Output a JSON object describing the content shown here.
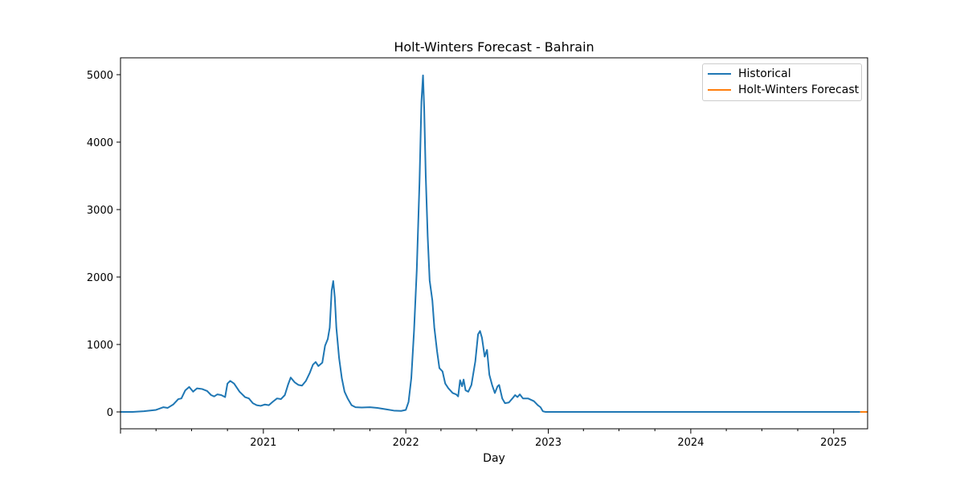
{
  "chart_data": {
    "type": "line",
    "title": "Holt-Winters Forecast - Bahrain",
    "xlabel": "Day",
    "ylabel": "",
    "xlim": [
      "2020-01-01",
      "2025-03-29"
    ],
    "ylim": [
      -250,
      5250
    ],
    "x_ticks": [
      {
        "date": "2021-01-01",
        "label": "2021"
      },
      {
        "date": "2022-01-01",
        "label": "2022"
      },
      {
        "date": "2023-01-01",
        "label": "2023"
      },
      {
        "date": "2024-01-01",
        "label": "2024"
      },
      {
        "date": "2025-01-01",
        "label": "2025"
      }
    ],
    "y_ticks": [
      0,
      1000,
      2000,
      3000,
      4000,
      5000
    ],
    "grid": false,
    "legend_position": "top-right",
    "series": [
      {
        "name": "Historical",
        "color": "#1f77b4",
        "points": [
          [
            "2020-01-01",
            0
          ],
          [
            "2020-02-01",
            0
          ],
          [
            "2020-03-01",
            10
          ],
          [
            "2020-04-01",
            30
          ],
          [
            "2020-04-20",
            70
          ],
          [
            "2020-05-01",
            60
          ],
          [
            "2020-05-15",
            110
          ],
          [
            "2020-05-28",
            190
          ],
          [
            "2020-06-05",
            200
          ],
          [
            "2020-06-15",
            320
          ],
          [
            "2020-06-25",
            370
          ],
          [
            "2020-07-05",
            300
          ],
          [
            "2020-07-15",
            350
          ],
          [
            "2020-07-28",
            340
          ],
          [
            "2020-08-10",
            310
          ],
          [
            "2020-08-20",
            250
          ],
          [
            "2020-08-28",
            230
          ],
          [
            "2020-09-05",
            260
          ],
          [
            "2020-09-15",
            250
          ],
          [
            "2020-09-25",
            220
          ],
          [
            "2020-10-01",
            420
          ],
          [
            "2020-10-08",
            460
          ],
          [
            "2020-10-18",
            420
          ],
          [
            "2020-11-01",
            300
          ],
          [
            "2020-11-15",
            220
          ],
          [
            "2020-11-25",
            200
          ],
          [
            "2020-12-05",
            130
          ],
          [
            "2020-12-15",
            100
          ],
          [
            "2020-12-25",
            90
          ],
          [
            "2021-01-05",
            110
          ],
          [
            "2021-01-15",
            100
          ],
          [
            "2021-01-25",
            150
          ],
          [
            "2021-02-05",
            200
          ],
          [
            "2021-02-15",
            190
          ],
          [
            "2021-02-25",
            250
          ],
          [
            "2021-03-05",
            400
          ],
          [
            "2021-03-12",
            510
          ],
          [
            "2021-03-22",
            440
          ],
          [
            "2021-04-01",
            400
          ],
          [
            "2021-04-10",
            390
          ],
          [
            "2021-04-20",
            460
          ],
          [
            "2021-04-30",
            580
          ],
          [
            "2021-05-08",
            700
          ],
          [
            "2021-05-15",
            740
          ],
          [
            "2021-05-22",
            680
          ],
          [
            "2021-06-01",
            730
          ],
          [
            "2021-06-08",
            980
          ],
          [
            "2021-06-15",
            1080
          ],
          [
            "2021-06-20",
            1250
          ],
          [
            "2021-06-25",
            1800
          ],
          [
            "2021-06-29",
            1940
          ],
          [
            "2021-07-03",
            1700
          ],
          [
            "2021-07-07",
            1250
          ],
          [
            "2021-07-14",
            800
          ],
          [
            "2021-07-21",
            500
          ],
          [
            "2021-07-28",
            300
          ],
          [
            "2021-08-05",
            200
          ],
          [
            "2021-08-15",
            100
          ],
          [
            "2021-08-25",
            70
          ],
          [
            "2021-09-10",
            65
          ],
          [
            "2021-10-01",
            70
          ],
          [
            "2021-10-20",
            60
          ],
          [
            "2021-11-10",
            40
          ],
          [
            "2021-12-01",
            20
          ],
          [
            "2021-12-20",
            15
          ],
          [
            "2022-01-01",
            30
          ],
          [
            "2022-01-08",
            150
          ],
          [
            "2022-01-15",
            500
          ],
          [
            "2022-01-22",
            1200
          ],
          [
            "2022-01-29",
            2100
          ],
          [
            "2022-02-05",
            3400
          ],
          [
            "2022-02-10",
            4600
          ],
          [
            "2022-02-14",
            4990
          ],
          [
            "2022-02-17",
            4500
          ],
          [
            "2022-02-21",
            3500
          ],
          [
            "2022-02-26",
            2600
          ],
          [
            "2022-03-03",
            1950
          ],
          [
            "2022-03-10",
            1650
          ],
          [
            "2022-03-15",
            1250
          ],
          [
            "2022-03-22",
            900
          ],
          [
            "2022-03-28",
            650
          ],
          [
            "2022-04-05",
            600
          ],
          [
            "2022-04-12",
            420
          ],
          [
            "2022-04-20",
            350
          ],
          [
            "2022-05-01",
            280
          ],
          [
            "2022-05-10",
            260
          ],
          [
            "2022-05-15",
            230
          ],
          [
            "2022-05-20",
            470
          ],
          [
            "2022-05-25",
            380
          ],
          [
            "2022-05-29",
            480
          ],
          [
            "2022-06-03",
            320
          ],
          [
            "2022-06-10",
            300
          ],
          [
            "2022-06-18",
            400
          ],
          [
            "2022-06-28",
            750
          ],
          [
            "2022-07-05",
            1150
          ],
          [
            "2022-07-10",
            1200
          ],
          [
            "2022-07-15",
            1100
          ],
          [
            "2022-07-22",
            820
          ],
          [
            "2022-07-28",
            920
          ],
          [
            "2022-08-03",
            550
          ],
          [
            "2022-08-10",
            400
          ],
          [
            "2022-08-17",
            280
          ],
          [
            "2022-08-24",
            380
          ],
          [
            "2022-08-28",
            400
          ],
          [
            "2022-09-05",
            200
          ],
          [
            "2022-09-12",
            130
          ],
          [
            "2022-09-22",
            140
          ],
          [
            "2022-10-01",
            200
          ],
          [
            "2022-10-08",
            250
          ],
          [
            "2022-10-14",
            220
          ],
          [
            "2022-10-20",
            260
          ],
          [
            "2022-10-28",
            200
          ],
          [
            "2022-11-10",
            200
          ],
          [
            "2022-11-25",
            160
          ],
          [
            "2022-12-05",
            100
          ],
          [
            "2022-12-12",
            70
          ],
          [
            "2022-12-18",
            10
          ],
          [
            "2022-12-25",
            0
          ],
          [
            "2023-06-01",
            0
          ],
          [
            "2024-01-01",
            0
          ],
          [
            "2024-06-01",
            0
          ],
          [
            "2025-01-01",
            0
          ],
          [
            "2025-03-10",
            0
          ]
        ]
      },
      {
        "name": "Holt-Winters Forecast",
        "color": "#ff7f0e",
        "points": [
          [
            "2025-03-10",
            0
          ],
          [
            "2025-03-29",
            0
          ]
        ]
      }
    ]
  }
}
